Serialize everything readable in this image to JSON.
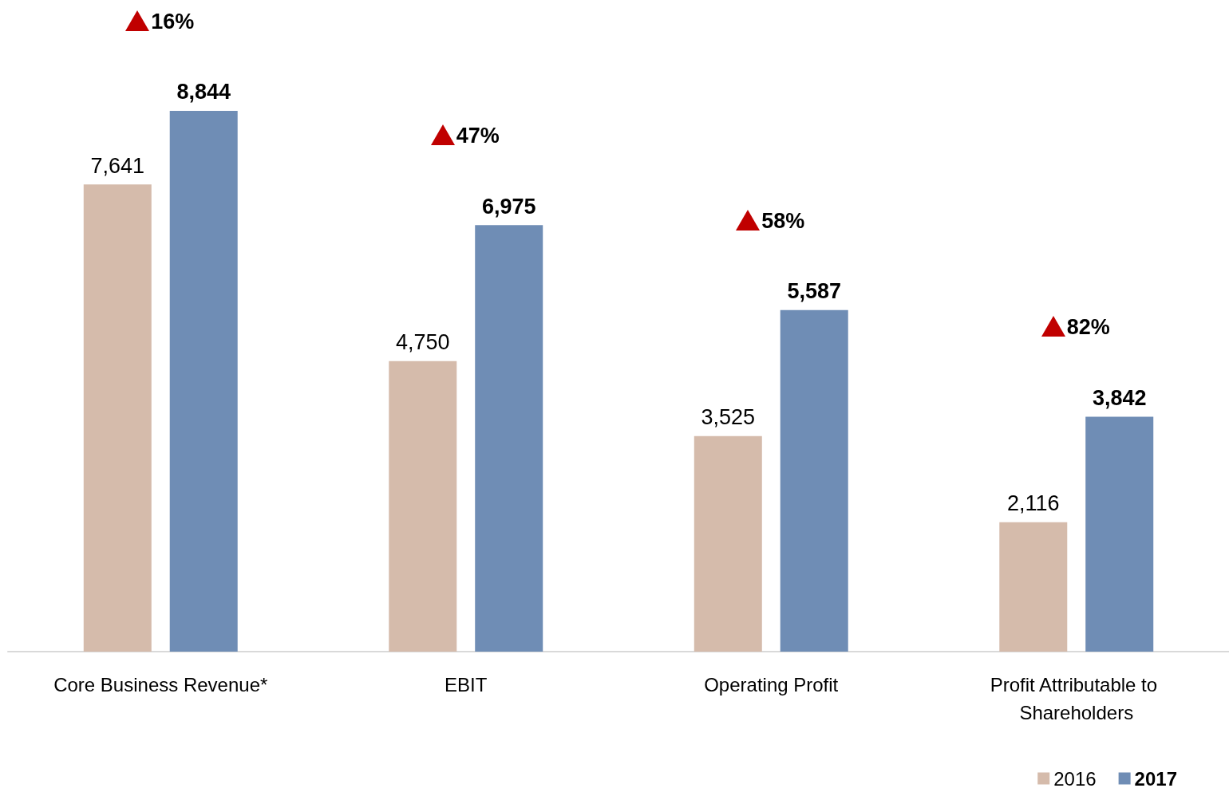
{
  "chart_data": {
    "type": "bar",
    "categories": [
      "Core Business Revenue*",
      "EBIT",
      "Operating Profit",
      "Profit Attributable to Shareholders"
    ],
    "series": [
      {
        "name": "2016",
        "color": "#d5bbab",
        "values": [
          7641,
          4750,
          3525,
          2116
        ],
        "value_labels": [
          "7,641",
          "4,750",
          "3,525",
          "2,116"
        ]
      },
      {
        "name": "2017",
        "color": "#6f8db5",
        "values": [
          8844,
          6975,
          5587,
          3842
        ],
        "value_labels": [
          "8,844",
          "6,975",
          "5,587",
          "3,842"
        ]
      }
    ],
    "legend": "bottom right",
    "annotations": [
      "16%",
      "47%",
      "58%",
      "82%"
    ]
  }
}
